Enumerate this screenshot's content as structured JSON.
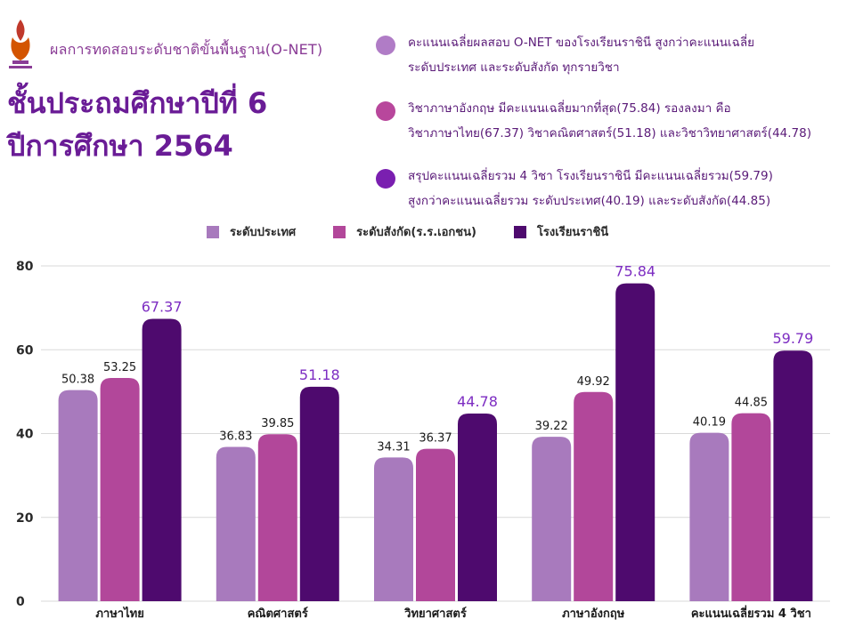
{
  "header": {
    "subtitle": "ผลการทดสอบระดับชาติขั้นพื้นฐาน(O-NET)",
    "title_line1": "ชั้นประถมศึกษาปีที่ 6",
    "title_line2": "ปีการศึกษา 2564"
  },
  "notes": [
    {
      "line1": "คะแนนเฉลี่ยผลสอบ O-NET ของโรงเรียนราชินี สูงกว่าคะแนนเฉลี่ย",
      "line2": "ระดับประเทศ และระดับสังกัด ทุกรายวิชา",
      "color": "#b07cc6"
    },
    {
      "line1": "วิชาภาษาอังกฤษ มีคะแนนเฉลี่ยมากที่สุด(75.84) รองลงมา คือ",
      "line2": "วิชาภาษาไทย(67.37) วิชาคณิตศาสตร์(51.18) และวิชาวิทยาศาสตร์(44.78)",
      "color": "#b8479c"
    },
    {
      "line1": "สรุปคะแนนเฉลี่ยรวม 4 วิชา โรงเรียนราชินี มีคะแนนเฉลี่ยรวม(59.79)",
      "line2": "สูงกว่าคะแนนเฉลี่ยรวม ระดับประเทศ(40.19) และระดับสังกัด(44.85)",
      "color": "#7a1fb0"
    }
  ],
  "chart_data": {
    "type": "bar",
    "categories": [
      "ภาษาไทย",
      "คณิตศาสตร์",
      "วิทยาศาสตร์",
      "ภาษาอังกฤษ",
      "คะแนนเฉลี่ยรวม 4 วิชา"
    ],
    "series": [
      {
        "name": "ระดับประเทศ",
        "values": [
          50.38,
          36.83,
          34.31,
          39.22,
          40.19
        ],
        "color": "#a87abd",
        "label_color": "#1a1a1a"
      },
      {
        "name": "ระดับสังกัด(ร.ร.เอกชน)",
        "values": [
          53.25,
          39.85,
          36.37,
          49.92,
          44.85
        ],
        "color": "#b2479a",
        "label_color": "#1a1a1a"
      },
      {
        "name": "โรงเรียนราชินี",
        "values": [
          67.37,
          51.18,
          44.78,
          75.84,
          59.79
        ],
        "color": "#4e0a6e",
        "label_color": "#7d2dc2"
      }
    ],
    "ylim": [
      0,
      80
    ],
    "yticks": [
      0,
      20,
      40,
      60,
      80
    ],
    "grid": true,
    "legend_position": "top"
  }
}
